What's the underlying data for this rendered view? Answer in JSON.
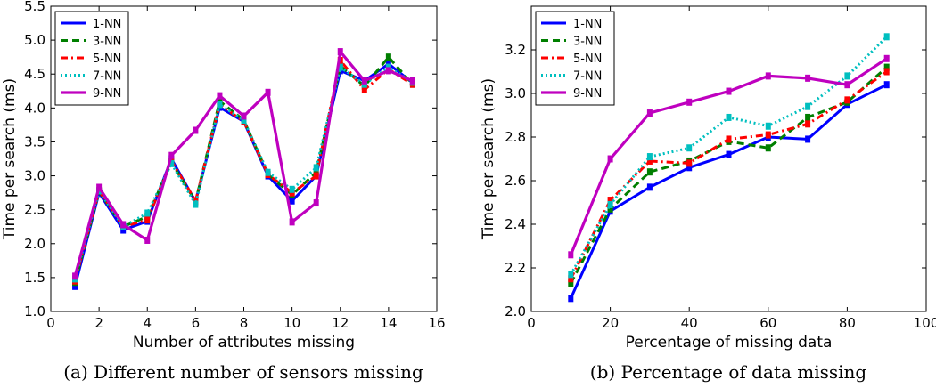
{
  "chart_data": [
    {
      "type": "line",
      "title": "",
      "xlabel": "Number of attributes missing",
      "ylabel": "Time per search (ms)",
      "caption": "(a) Different number of sensors missing",
      "xlim": [
        0,
        16
      ],
      "ylim": [
        1.0,
        5.5
      ],
      "xticks": [
        0,
        2,
        4,
        6,
        8,
        10,
        12,
        14,
        16
      ],
      "yticks": [
        1.0,
        1.5,
        2.0,
        2.5,
        3.0,
        3.5,
        4.0,
        4.5,
        5.0,
        5.5
      ],
      "ytick_decimals": 1,
      "x": [
        1,
        2,
        3,
        4,
        5,
        6,
        7,
        8,
        9,
        10,
        11,
        12,
        13,
        14,
        15
      ],
      "legend_position": "top-left",
      "series": [
        {
          "name": "1-NN",
          "color": "#0000ff",
          "style": "solid",
          "values": [
            1.37,
            2.75,
            2.2,
            2.33,
            3.25,
            2.62,
            4.01,
            3.8,
            3.0,
            2.63,
            3.0,
            4.55,
            4.4,
            4.65,
            4.37
          ]
        },
        {
          "name": "3-NN",
          "color": "#007f00",
          "style": "dashed",
          "values": [
            1.43,
            2.77,
            2.25,
            2.4,
            3.2,
            2.62,
            4.1,
            3.82,
            3.02,
            2.72,
            3.05,
            4.62,
            4.32,
            4.75,
            4.35
          ]
        },
        {
          "name": "5-NN",
          "color": "#ff0000",
          "style": "dashdot",
          "values": [
            1.45,
            2.78,
            2.25,
            2.35,
            3.22,
            2.63,
            4.05,
            3.8,
            3.02,
            2.75,
            3.0,
            4.7,
            4.27,
            4.57,
            4.35
          ]
        },
        {
          "name": "7-NN",
          "color": "#00bfbf",
          "style": "dotted",
          "values": [
            1.48,
            2.78,
            2.25,
            2.45,
            3.18,
            2.58,
            4.05,
            3.82,
            3.05,
            2.8,
            3.12,
            4.6,
            4.35,
            4.6,
            4.38
          ]
        },
        {
          "name": "9-NN",
          "color": "#bf00bf",
          "style": "solid-thick",
          "values": [
            1.52,
            2.83,
            2.28,
            2.05,
            3.3,
            3.67,
            4.18,
            3.88,
            4.23,
            2.32,
            2.6,
            4.83,
            4.4,
            4.55,
            4.4
          ]
        }
      ]
    },
    {
      "type": "line",
      "title": "",
      "xlabel": "Percentage of missing data",
      "ylabel": "Time per search (ms)",
      "caption": "(b) Percentage of data missing",
      "xlim": [
        0,
        100
      ],
      "ylim": [
        2.0,
        3.4
      ],
      "xticks": [
        0,
        20,
        40,
        60,
        80,
        100
      ],
      "yticks": [
        2.0,
        2.2,
        2.4,
        2.6,
        2.8,
        3.0,
        3.2
      ],
      "ytick_decimals": 1,
      "x": [
        10,
        20,
        30,
        40,
        50,
        60,
        70,
        80,
        90
      ],
      "legend_position": "top-left",
      "series": [
        {
          "name": "1-NN",
          "color": "#0000ff",
          "style": "solid",
          "values": [
            2.06,
            2.46,
            2.57,
            2.66,
            2.72,
            2.8,
            2.79,
            2.95,
            3.04
          ]
        },
        {
          "name": "3-NN",
          "color": "#007f00",
          "style": "dashed",
          "values": [
            2.13,
            2.47,
            2.64,
            2.69,
            2.78,
            2.75,
            2.89,
            2.96,
            3.12
          ]
        },
        {
          "name": "5-NN",
          "color": "#ff0000",
          "style": "dashdot",
          "values": [
            2.15,
            2.51,
            2.69,
            2.68,
            2.79,
            2.81,
            2.86,
            2.97,
            3.1
          ]
        },
        {
          "name": "7-NN",
          "color": "#00bfbf",
          "style": "dotted",
          "values": [
            2.17,
            2.49,
            2.71,
            2.75,
            2.89,
            2.85,
            2.94,
            3.08,
            3.26
          ]
        },
        {
          "name": "9-NN",
          "color": "#bf00bf",
          "style": "solid-thick",
          "values": [
            2.26,
            2.7,
            2.91,
            2.96,
            3.01,
            3.08,
            3.07,
            3.04,
            3.16
          ]
        }
      ]
    }
  ]
}
